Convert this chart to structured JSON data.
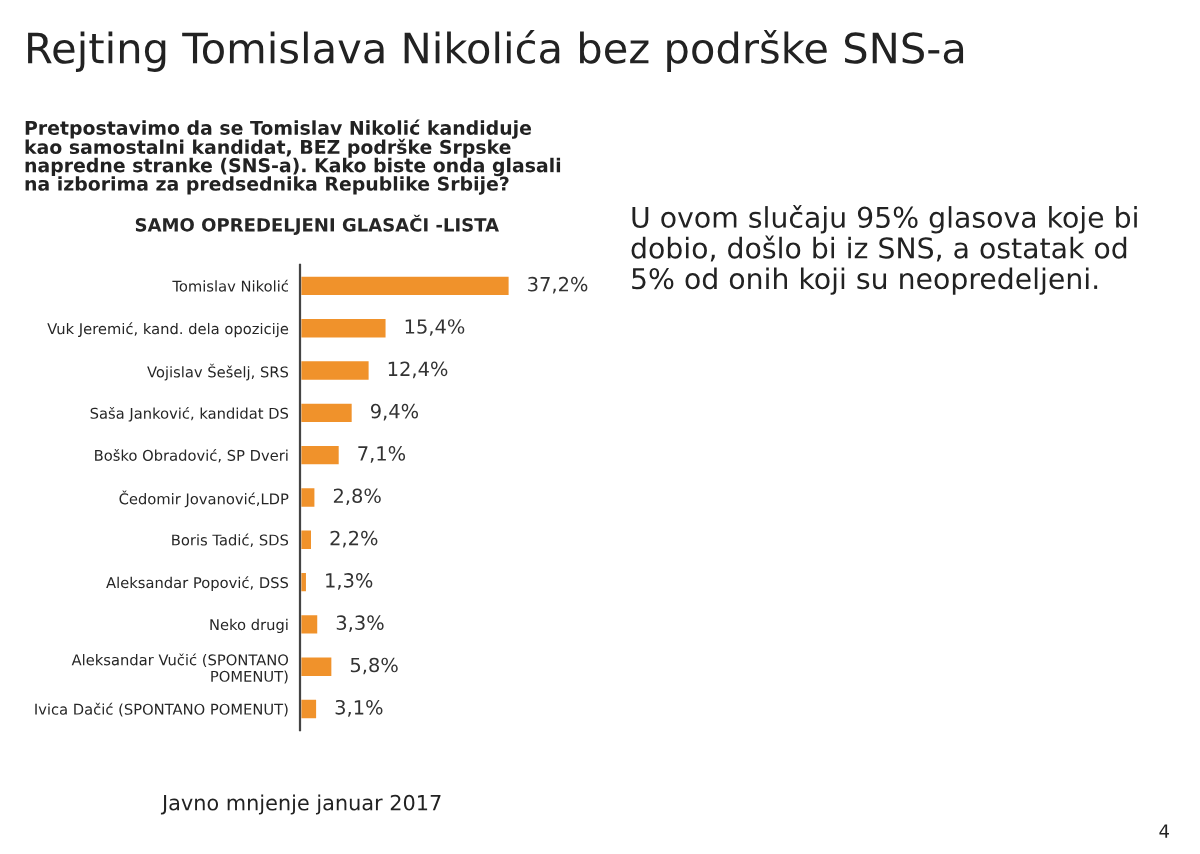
{
  "chart_data": {
    "type": "bar",
    "orientation": "horizontal",
    "title": "SAMO OPREDELJENI GLASAČI -LISTA",
    "annotations": [
      "Rejting Tomislava Nikolića bez podrške SNS-a",
      "Pretpostavimo da se Tomislav Nikolić kandiduje\nkao samostalni kandidat, BEZ podrške Srpske\nnapredne stranke (SNS-a). Kako biste onda glasali\nna izborima za predsednika Republike Srbije?",
      "U ovom slučaju 95% glasova koje bi\ndobio, došlo bi iz SNS, a ostatak od\n5% od onih koji su neopredeljeni.",
      "Javno mnjenje januar 2017",
      "4"
    ],
    "categories": [
      "Tomislav Nikolić",
      "Vuk Jeremić, kand. dela opozicije",
      "Vojislav Šešelj, SRS",
      "Saša Janković, kandidat DS",
      "Boško Obradović, SP Dveri",
      "Čedomir Jovanović,LDP",
      "Boris Tadić, SDS",
      "Aleksandar Popović, DSS",
      "Neko drugi",
      "Aleksandar Vučić (SPONTANO\nPOMENUT)",
      "Ivica Dačić (SPONTANO POMENUT)"
    ],
    "values": [
      37.2,
      15.4,
      12.4,
      9.4,
      7.1,
      2.8,
      2.2,
      1.3,
      3.3,
      5.8,
      3.1
    ],
    "value_labels": [
      "37,2%",
      "15,4%",
      "12,4%",
      "9,4%",
      "7,1%",
      "2,8%",
      "2,2%",
      "1,3%",
      "3,3%",
      "5,8%",
      "3,1%"
    ],
    "color": "#f0922b"
  }
}
